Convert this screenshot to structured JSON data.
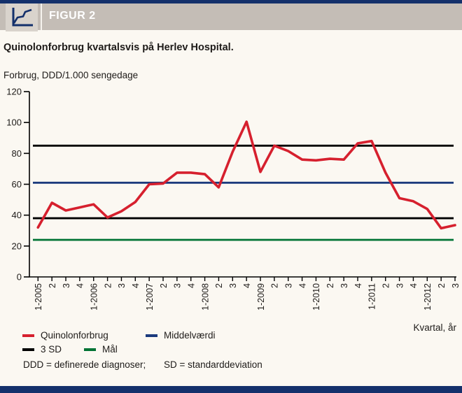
{
  "header": {
    "figure_label": "FIGUR 2"
  },
  "title": "Quinolonforbrug kvartalsvis på Herlev Hospital.",
  "y_axis_unit_label": "Forbrug, DDD/1.000 sengedage",
  "x_axis_title": "Kvartal, år",
  "footnote": {
    "part1": "DDD = definerede diagnoser;",
    "part2": "SD = standarddeviation"
  },
  "colors": {
    "navy_bar": "#14306b",
    "header_gray": "#c4bdb6",
    "icon_box": "#d9d3cc",
    "background": "#fbf8f2",
    "series_red": "#d6202e",
    "mean_blue": "#1b3a7d",
    "sd_black": "#000000",
    "goal_green": "#007334",
    "axis_black": "#000000",
    "figure_icon": "line-chart-icon"
  },
  "legend": {
    "items": [
      {
        "label": "Quinolonforbrug",
        "color": "#d6202e",
        "row": 1,
        "col": 1
      },
      {
        "label": "Middelværdi",
        "color": "#1b3a7d",
        "row": 1,
        "col": 2
      },
      {
        "label": "3 SD",
        "color": "#000000",
        "row": 2,
        "col": 1
      },
      {
        "label": "Mål",
        "color": "#007334",
        "row": 2,
        "col": 2
      }
    ]
  },
  "chart_data": {
    "type": "line",
    "title": "Quinolonforbrug kvartalsvis på Herlev Hospital.",
    "ylabel": "Forbrug, DDD/1.000 sengedage",
    "xlabel": "Kvartal, år",
    "ylim": [
      0,
      120
    ],
    "ytick_interval": 20,
    "yticks": [
      0,
      20,
      40,
      60,
      80,
      100,
      120
    ],
    "grid": false,
    "legend_position": "bottom-left",
    "categories": [
      "1-2005",
      "2",
      "3",
      "4",
      "1-2006",
      "2",
      "3",
      "4",
      "1-2007",
      "2",
      "3",
      "4",
      "1-2008",
      "2",
      "3",
      "4",
      "1-2009",
      "2",
      "3",
      "4",
      "1-2010",
      "2",
      "3",
      "4",
      "1-2011",
      "2",
      "3",
      "4",
      "1-2012",
      "2",
      "3"
    ],
    "series": [
      {
        "name": "Quinolonforbrug",
        "color": "#d6202e",
        "values": [
          32,
          48,
          43,
          45,
          47,
          38.5,
          42.5,
          48.5,
          60,
          60.5,
          67.5,
          67.5,
          66.5,
          58,
          81,
          100.5,
          68,
          85,
          81.5,
          76,
          75.5,
          76.5,
          76,
          86.5,
          88,
          67.5,
          51,
          49,
          44,
          31.5,
          33.5
        ]
      }
    ],
    "reference_lines": [
      {
        "name": "Middelværdi",
        "value": 61,
        "color": "#1b3a7d"
      },
      {
        "name": "3 SD øvre",
        "value": 85,
        "color": "#000000"
      },
      {
        "name": "3 SD nedre",
        "value": 38,
        "color": "#000000"
      },
      {
        "name": "Mål",
        "value": 24,
        "color": "#007334"
      }
    ]
  }
}
